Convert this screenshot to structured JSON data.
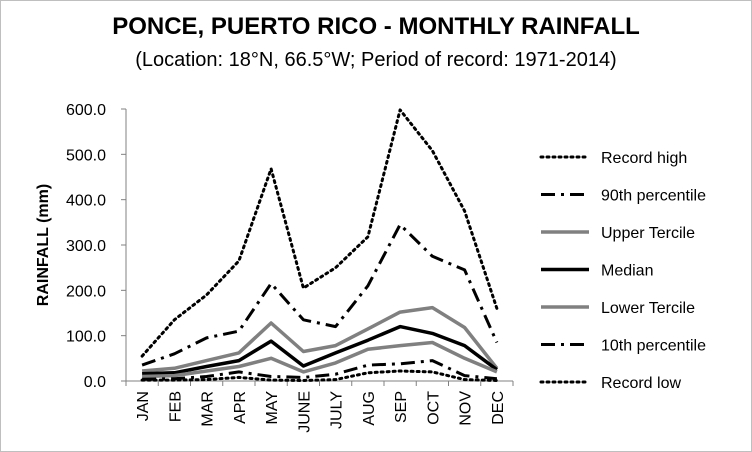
{
  "chart_data": {
    "type": "line",
    "title": "PONCE, PUERTO RICO - MONTHLY RAINFALL",
    "subtitle": "(Location: 18°N, 66.5°W; Period of record: 1971-2014)",
    "ylabel": "RAINFALL (mm)",
    "xlabel": "",
    "ylim": [
      0,
      600
    ],
    "yticks": [
      "0.0",
      "100.0",
      "200.0",
      "300.0",
      "400.0",
      "500.0",
      "600.0"
    ],
    "categories": [
      "JAN",
      "FEB",
      "MAR",
      "APR",
      "MAY",
      "JUNE",
      "JULY",
      "AUG",
      "SEP",
      "OCT",
      "NOV",
      "DEC"
    ],
    "legend_position": "right",
    "grid": false,
    "series": [
      {
        "name": "Record high",
        "style": "dotted",
        "color": "#000000",
        "values": [
          55,
          135,
          190,
          265,
          468,
          205,
          250,
          318,
          598,
          508,
          375,
          160
        ]
      },
      {
        "name": "90th percentile",
        "style": "dash-dot",
        "color": "#000000",
        "values": [
          35,
          60,
          95,
          110,
          215,
          135,
          120,
          210,
          345,
          275,
          245,
          85
        ]
      },
      {
        "name": "Upper Tercile",
        "style": "solid-gray",
        "color": "#808080",
        "values": [
          22,
          28,
          45,
          62,
          128,
          65,
          78,
          115,
          152,
          162,
          118,
          28
        ]
      },
      {
        "name": "Median",
        "style": "solid-black",
        "color": "#000000",
        "values": [
          16,
          18,
          32,
          45,
          88,
          33,
          62,
          90,
          120,
          105,
          78,
          25
        ]
      },
      {
        "name": "Lower Tercile",
        "style": "solid-gray",
        "color": "#808080",
        "values": [
          10,
          12,
          22,
          32,
          50,
          20,
          40,
          70,
          78,
          85,
          50,
          20
        ]
      },
      {
        "name": "10th percentile",
        "style": "dash-dot",
        "color": "#000000",
        "values": [
          4,
          5,
          10,
          20,
          10,
          8,
          15,
          35,
          38,
          45,
          12,
          5
        ]
      },
      {
        "name": "Record low",
        "style": "dotted",
        "color": "#000000",
        "values": [
          2,
          2,
          3,
          8,
          2,
          1,
          3,
          18,
          22,
          20,
          3,
          1
        ]
      }
    ]
  }
}
